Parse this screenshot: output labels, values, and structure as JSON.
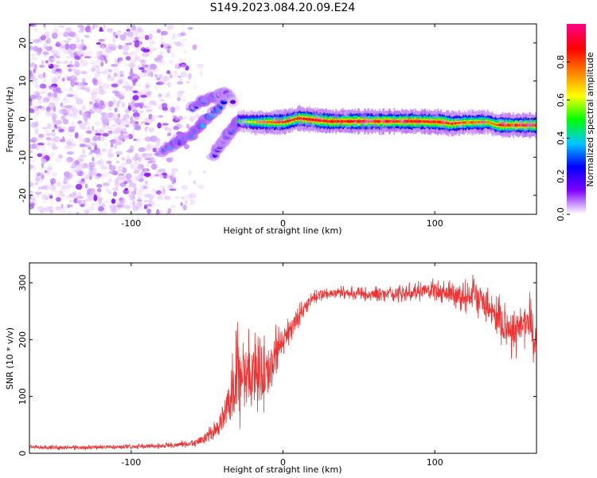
{
  "figure_title": "S149.2023.084.20.09.E24",
  "chart_data": [
    {
      "type": "heatmap",
      "xlabel": "Height of straight line (km)",
      "ylabel": "Frequency (Hz)",
      "xlim": [
        -167,
        167
      ],
      "ylim": [
        -25,
        25
      ],
      "x_ticks": [
        -100,
        0,
        100
      ],
      "y_ticks": [
        -20,
        -10,
        0,
        10,
        20
      ],
      "grid": false,
      "colorbar": {
        "label": "Normalized spectral amplitude",
        "range": [
          0,
          1
        ],
        "ticks": [
          0,
          0.2,
          0.4,
          0.6,
          0.8
        ],
        "tick_labels": [
          "0.0",
          "0.2",
          "0.4",
          "0.6",
          "0.8"
        ],
        "colors": [
          "#ffffff",
          "#8000ff",
          "#0000ff",
          "#00c8ff",
          "#00ff00",
          "#ffff00",
          "#ff8000",
          "#ff0000",
          "#ff0080"
        ]
      },
      "features": {
        "noise_region_x": [
          -167,
          -60
        ],
        "noise_peak_amplitude": 0.1,
        "transition_x": [
          -80,
          -25
        ],
        "transition_branches": [
          {
            "x": [
              -80,
              -70,
              -60,
              -50,
              -42,
              -37
            ],
            "freq": [
              -9,
              -6,
              -4,
              0,
              3,
              6
            ],
            "amplitude": [
              0.3,
              0.35,
              0.3,
              0.35,
              0.3,
              0.25
            ]
          },
          {
            "x": [
              -60,
              -52,
              -44,
              -38,
              -33
            ],
            "freq": [
              3,
              5,
              6,
              7,
              5
            ],
            "amplitude": [
              0.25,
              0.3,
              0.3,
              0.25,
              0.2
            ]
          },
          {
            "x": [
              -46,
              -40,
              -34,
              -30,
              -26
            ],
            "freq": [
              -10,
              -6,
              -3,
              -1,
              0
            ],
            "amplitude": [
              0.25,
              0.25,
              0.3,
              0.3,
              0.35
            ]
          }
        ],
        "carrier_line": {
          "x": [
            -30,
            -20,
            0,
            10,
            30,
            60,
            90,
            105,
            110,
            120,
            135,
            140,
            150,
            167
          ],
          "freq": [
            -0.5,
            -0.8,
            -0.8,
            0.2,
            -0.6,
            -0.6,
            -0.6,
            -0.8,
            -1.2,
            -0.9,
            -0.8,
            -1.5,
            -1.6,
            -1.6
          ],
          "amplitude": [
            0.5,
            0.7,
            0.85,
            0.9,
            0.9,
            0.9,
            0.9,
            0.88,
            0.85,
            0.8,
            0.8,
            0.85,
            0.9,
            0.88
          ]
        }
      }
    },
    {
      "type": "line",
      "xlabel": "Height of straight line (km)",
      "ylabel": "SNR (10 * v/v)",
      "xlim": [
        -167,
        167
      ],
      "ylim": [
        0,
        335
      ],
      "x_ticks": [
        -100,
        0,
        100
      ],
      "y_ticks": [
        0,
        100,
        200,
        300
      ],
      "grid": false,
      "color": "#ee3333",
      "series": [
        {
          "x": [
            -167,
            -140,
            -100,
            -80,
            -60,
            -55,
            -50,
            -45,
            -40,
            -35,
            -32,
            -30,
            -28,
            -26,
            -24,
            -22,
            -20,
            -18,
            -16,
            -14,
            -12,
            -10,
            -8,
            -5,
            0,
            5,
            10,
            15,
            20,
            30,
            40,
            60,
            80,
            100,
            110,
            120,
            125,
            130,
            135,
            140,
            150,
            160,
            163,
            165,
            167
          ],
          "values": [
            11,
            10,
            11,
            13,
            17,
            22,
            30,
            40,
            56,
            90,
            120,
            135,
            145,
            150,
            142,
            140,
            150,
            145,
            130,
            130,
            140,
            150,
            155,
            175,
            200,
            220,
            240,
            260,
            275,
            280,
            283,
            280,
            282,
            287,
            282,
            275,
            280,
            270,
            255,
            240,
            215,
            230,
            235,
            210,
            175
          ],
          "noise_amplitude": [
            4,
            4,
            4,
            5,
            6,
            9,
            12,
            16,
            22,
            60,
            80,
            85,
            85,
            80,
            75,
            70,
            68,
            66,
            64,
            62,
            60,
            55,
            52,
            45,
            35,
            25,
            20,
            15,
            12,
            10,
            10,
            12,
            14,
            18,
            22,
            26,
            30,
            32,
            35,
            40,
            45,
            45,
            45,
            45,
            30
          ]
        }
      ]
    }
  ]
}
